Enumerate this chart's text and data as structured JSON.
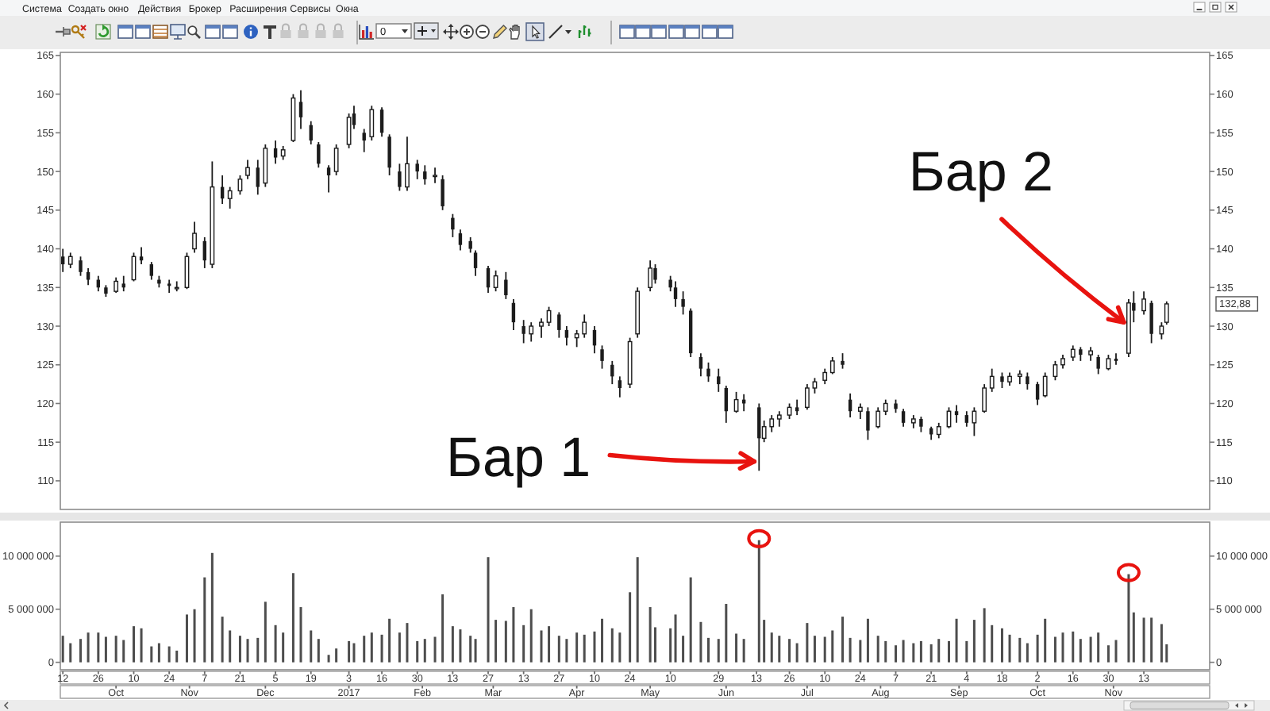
{
  "chart_data": [
    {
      "type": "candlestick",
      "color": "#1c1c1c",
      "x": [
        "2016-09-12",
        "2016-09-15",
        "2016-09-19",
        "2016-09-22",
        "2016-09-26",
        "2016-09-29",
        "2016-10-03",
        "2016-10-06",
        "2016-10-10",
        "2016-10-13",
        "2016-10-17",
        "2016-10-20",
        "2016-10-24",
        "2016-10-27",
        "2016-10-31",
        "2016-11-03",
        "2016-11-07",
        "2016-11-10",
        "2016-11-14",
        "2016-11-17",
        "2016-11-21",
        "2016-11-24",
        "2016-11-28",
        "2016-12-01",
        "2016-12-05",
        "2016-12-08",
        "2016-12-12",
        "2016-12-15",
        "2016-12-19",
        "2016-12-22",
        "2016-12-26",
        "2016-12-29",
        "2017-01-03",
        "2017-01-05",
        "2017-01-09",
        "2017-01-12",
        "2017-01-16",
        "2017-01-19",
        "2017-01-23",
        "2017-01-26",
        "2017-01-30",
        "2017-02-02",
        "2017-02-06",
        "2017-02-09",
        "2017-02-13",
        "2017-02-16",
        "2017-02-20",
        "2017-02-22",
        "2017-02-27",
        "2017-03-02",
        "2017-03-06",
        "2017-03-09",
        "2017-03-13",
        "2017-03-16",
        "2017-03-20",
        "2017-03-23",
        "2017-03-27",
        "2017-03-30",
        "2017-04-03",
        "2017-04-06",
        "2017-04-10",
        "2017-04-13",
        "2017-04-17",
        "2017-04-20",
        "2017-04-24",
        "2017-04-27",
        "2017-05-02",
        "2017-05-04",
        "2017-05-10",
        "2017-05-12",
        "2017-05-15",
        "2017-05-18",
        "2017-05-22",
        "2017-05-25",
        "2017-05-29",
        "2017-06-01",
        "2017-06-05",
        "2017-06-08",
        "2017-06-14",
        "2017-06-16",
        "2017-06-19",
        "2017-06-22",
        "2017-06-26",
        "2017-06-29",
        "2017-07-03",
        "2017-07-06",
        "2017-07-10",
        "2017-07-13",
        "2017-07-17",
        "2017-07-20",
        "2017-07-24",
        "2017-07-27",
        "2017-07-31",
        "2017-08-03",
        "2017-08-07",
        "2017-08-10",
        "2017-08-14",
        "2017-08-17",
        "2017-08-21",
        "2017-08-24",
        "2017-08-28",
        "2017-08-31",
        "2017-09-04",
        "2017-09-07",
        "2017-09-11",
        "2017-09-14",
        "2017-09-18",
        "2017-09-21",
        "2017-09-25",
        "2017-09-28",
        "2017-10-02",
        "2017-10-05",
        "2017-10-09",
        "2017-10-12",
        "2017-10-16",
        "2017-10-19",
        "2017-10-23",
        "2017-10-26",
        "2017-10-30",
        "2017-11-02",
        "2017-11-07",
        "2017-11-09",
        "2017-11-13",
        "2017-11-16",
        "2017-11-20",
        "2017-11-22"
      ],
      "ohlc": [
        [
          139,
          140,
          137,
          138
        ],
        [
          138,
          139.5,
          137.5,
          139
        ],
        [
          138.5,
          139,
          136.5,
          137
        ],
        [
          137,
          137.5,
          135.3,
          136
        ],
        [
          136,
          136.5,
          134.5,
          135
        ],
        [
          135,
          135.3,
          133.8,
          134.2
        ],
        [
          134.5,
          136.3,
          134.3,
          135.8
        ],
        [
          135.5,
          136.5,
          134.5,
          135
        ],
        [
          136,
          139.5,
          135.8,
          139
        ],
        [
          139,
          140.2,
          138,
          138.5
        ],
        [
          138,
          138.3,
          136,
          136.5
        ],
        [
          136,
          136.5,
          135,
          135.5
        ],
        [
          135.5,
          136,
          134.3,
          135.2
        ],
        [
          135,
          135.8,
          134.5,
          135
        ],
        [
          135,
          139.5,
          134.8,
          139
        ],
        [
          140,
          143.5,
          139.5,
          142
        ],
        [
          141,
          141.5,
          137.5,
          138.5
        ],
        [
          138,
          151.3,
          137.5,
          148
        ],
        [
          148,
          149.5,
          145.8,
          146.5
        ],
        [
          146.5,
          148,
          145.2,
          147.5
        ],
        [
          147.5,
          149.5,
          147,
          149
        ],
        [
          149.5,
          151.5,
          149,
          150.5
        ],
        [
          150.5,
          151.5,
          147,
          148
        ],
        [
          148.5,
          153.5,
          148,
          153
        ],
        [
          153,
          154,
          151,
          151.8
        ],
        [
          152,
          153.3,
          151.5,
          152.8
        ],
        [
          154,
          160,
          153.8,
          159.5
        ],
        [
          159,
          160.5,
          155.5,
          157
        ],
        [
          156,
          156.5,
          153.5,
          154
        ],
        [
          153.5,
          153.8,
          150.5,
          151
        ],
        [
          150.5,
          150.8,
          147.3,
          149.5
        ],
        [
          150,
          153.5,
          149.5,
          153
        ],
        [
          153.5,
          157.5,
          153,
          157
        ],
        [
          157.5,
          158.5,
          155.5,
          156
        ],
        [
          155,
          155.5,
          152.5,
          154
        ],
        [
          154.5,
          158.5,
          154,
          158
        ],
        [
          158,
          158.3,
          154.5,
          155
        ],
        [
          154.5,
          154.8,
          149.5,
          150.5
        ],
        [
          150,
          151,
          147.5,
          148
        ],
        [
          148,
          154.5,
          147.5,
          151
        ],
        [
          151,
          151.5,
          149,
          150
        ],
        [
          150,
          150.8,
          148.3,
          149
        ],
        [
          149.5,
          150.5,
          148.5,
          149.5
        ],
        [
          149,
          149.5,
          145,
          145.5
        ],
        [
          144,
          144.5,
          141.5,
          142.5
        ],
        [
          142,
          142.5,
          139.8,
          140.5
        ],
        [
          141,
          141.5,
          139.5,
          140
        ],
        [
          139.5,
          139.8,
          136.5,
          137.5
        ],
        [
          137.5,
          137.8,
          134.3,
          135
        ],
        [
          135,
          137.2,
          134.5,
          136.5
        ],
        [
          136,
          137,
          133.5,
          134
        ],
        [
          133,
          133.5,
          129.5,
          130.5
        ],
        [
          130,
          130.8,
          127.8,
          129
        ],
        [
          129,
          130.5,
          128,
          130
        ],
        [
          130,
          131,
          128.5,
          130.5
        ],
        [
          130.5,
          132.5,
          130,
          132
        ],
        [
          131.5,
          131.8,
          128.5,
          129.5
        ],
        [
          129.5,
          130,
          127.5,
          128.5
        ],
        [
          128.5,
          129.5,
          127.3,
          129
        ],
        [
          129,
          131.5,
          128.5,
          130.5
        ],
        [
          129.5,
          130,
          126.5,
          127.5
        ],
        [
          127,
          127.5,
          124.5,
          125.5
        ],
        [
          125,
          125.5,
          122.5,
          123.5
        ],
        [
          123,
          123.5,
          120.8,
          122
        ],
        [
          122.5,
          128.5,
          122,
          128
        ],
        [
          129,
          135,
          128.5,
          134.5
        ],
        [
          135,
          138.5,
          134.5,
          137.5
        ],
        [
          137.5,
          138,
          135.5,
          136
        ],
        [
          136,
          136.5,
          134.5,
          135
        ],
        [
          135,
          135.8,
          132.5,
          133.5
        ],
        [
          133.5,
          134.5,
          131.5,
          132.5
        ],
        [
          132,
          132.3,
          126,
          126.5
        ],
        [
          126,
          126.5,
          123.5,
          124.5
        ],
        [
          124.5,
          125.3,
          122.8,
          123.5
        ],
        [
          123.5,
          124.5,
          121.5,
          122.5
        ],
        [
          122,
          122.3,
          117.5,
          119
        ],
        [
          119,
          121.5,
          118.8,
          120.5
        ],
        [
          120.5,
          121.2,
          119,
          120
        ],
        [
          119.5,
          120,
          111.3,
          115.5
        ],
        [
          115.5,
          117.8,
          115,
          117
        ],
        [
          117,
          118.5,
          116.3,
          118
        ],
        [
          118,
          119,
          117,
          118.5
        ],
        [
          118.5,
          120,
          118,
          119.5
        ],
        [
          119.5,
          120.5,
          118.5,
          119
        ],
        [
          119.5,
          122.5,
          119.2,
          122
        ],
        [
          122,
          123.3,
          121.3,
          122.8
        ],
        [
          123,
          124.5,
          122.5,
          124
        ],
        [
          124,
          126,
          123.8,
          125.5
        ],
        [
          125.5,
          126.5,
          124.5,
          125
        ],
        [
          120.5,
          121.3,
          118.2,
          119
        ],
        [
          119,
          120,
          118,
          119.5
        ],
        [
          119,
          119.5,
          115.3,
          116.5
        ],
        [
          117,
          119.5,
          116.8,
          119
        ],
        [
          119,
          120.5,
          118.5,
          120
        ],
        [
          120,
          120.5,
          118.8,
          119.3
        ],
        [
          119,
          119.3,
          117,
          117.5
        ],
        [
          117.5,
          118.5,
          116.8,
          118
        ],
        [
          118,
          118.3,
          116.3,
          117
        ],
        [
          116.8,
          117,
          115.3,
          116
        ],
        [
          116,
          117.5,
          115.5,
          117
        ],
        [
          117,
          119.5,
          116.8,
          119
        ],
        [
          119,
          119.8,
          117.5,
          118.5
        ],
        [
          118.5,
          119,
          117,
          117.5
        ],
        [
          117.5,
          119.5,
          115.8,
          119
        ],
        [
          119,
          122.5,
          118.8,
          122
        ],
        [
          122,
          124.5,
          121.5,
          123.5
        ],
        [
          123.5,
          124,
          122,
          122.8
        ],
        [
          122.8,
          124,
          122.3,
          123.5
        ],
        [
          123.5,
          124.3,
          122.5,
          123.8
        ],
        [
          123.5,
          124,
          121.8,
          122.5
        ],
        [
          122.5,
          122.8,
          119.8,
          120.5
        ],
        [
          121,
          124,
          120.8,
          123.5
        ],
        [
          123.5,
          125.5,
          123,
          125
        ],
        [
          125,
          126.3,
          124.5,
          125.8
        ],
        [
          126,
          127.5,
          125.5,
          127
        ],
        [
          127,
          127.3,
          125.5,
          126.3
        ],
        [
          126.3,
          127.3,
          125.5,
          126.8
        ],
        [
          126,
          126.3,
          123.8,
          124.5
        ],
        [
          124.5,
          126.3,
          124.3,
          125.8
        ],
        [
          125.8,
          126.5,
          125,
          125.5
        ],
        [
          126.5,
          133.5,
          126,
          133
        ],
        [
          133,
          134.5,
          130.5,
          132
        ],
        [
          132,
          134.5,
          131.5,
          133.5
        ],
        [
          133,
          133.3,
          127.8,
          129
        ],
        [
          129,
          130.5,
          128.3,
          130
        ],
        [
          130.5,
          133.2,
          130.2,
          132.88
        ]
      ],
      "xlim": [
        "2016-09-11",
        "2017-12-09"
      ],
      "ylim": [
        106.3,
        165.4
      ],
      "yticks": [
        110,
        115,
        120,
        125,
        130,
        135,
        140,
        145,
        150,
        155,
        160,
        165
      ],
      "y2lim": [
        106.3,
        165.4
      ],
      "y2ticks": [
        110,
        115,
        120,
        125,
        130,
        135,
        140,
        145,
        150,
        155,
        160,
        165,
        {
          "value": 132.88,
          "label": "132,88"
        }
      ],
      "tick_labels": "y",
      "annotations": [
        {
          "text": "Бар 1",
          "x": "2017-06-14",
          "y": 112.5
        },
        {
          "text": "Бар 2",
          "x": "2017-11-07",
          "y": 130.5
        },
        "Система",
        "Создать окно",
        "Действия",
        "Брокер",
        "Расширения",
        "Сервисы",
        "Окна",
        "0"
      ]
    },
    {
      "type": "bar",
      "color": "#4d4d4d",
      "x": [
        "2016-09-12",
        "2016-09-15",
        "2016-09-19",
        "2016-09-22",
        "2016-09-26",
        "2016-09-29",
        "2016-10-03",
        "2016-10-06",
        "2016-10-10",
        "2016-10-13",
        "2016-10-17",
        "2016-10-20",
        "2016-10-24",
        "2016-10-27",
        "2016-10-31",
        "2016-11-03",
        "2016-11-07",
        "2016-11-10",
        "2016-11-14",
        "2016-11-17",
        "2016-11-21",
        "2016-11-24",
        "2016-11-28",
        "2016-12-01",
        "2016-12-05",
        "2016-12-08",
        "2016-12-12",
        "2016-12-15",
        "2016-12-19",
        "2016-12-22",
        "2016-12-26",
        "2016-12-29",
        "2017-01-03",
        "2017-01-05",
        "2017-01-09",
        "2017-01-12",
        "2017-01-16",
        "2017-01-19",
        "2017-01-23",
        "2017-01-26",
        "2017-01-30",
        "2017-02-02",
        "2017-02-06",
        "2017-02-09",
        "2017-02-13",
        "2017-02-16",
        "2017-02-20",
        "2017-02-22",
        "2017-02-27",
        "2017-03-02",
        "2017-03-06",
        "2017-03-09",
        "2017-03-13",
        "2017-03-16",
        "2017-03-20",
        "2017-03-23",
        "2017-03-27",
        "2017-03-30",
        "2017-04-03",
        "2017-04-06",
        "2017-04-10",
        "2017-04-13",
        "2017-04-17",
        "2017-04-20",
        "2017-04-24",
        "2017-04-27",
        "2017-05-02",
        "2017-05-04",
        "2017-05-10",
        "2017-05-12",
        "2017-05-15",
        "2017-05-18",
        "2017-05-22",
        "2017-05-25",
        "2017-05-29",
        "2017-06-01",
        "2017-06-05",
        "2017-06-08",
        "2017-06-14",
        "2017-06-16",
        "2017-06-19",
        "2017-06-22",
        "2017-06-26",
        "2017-06-29",
        "2017-07-03",
        "2017-07-06",
        "2017-07-10",
        "2017-07-13",
        "2017-07-17",
        "2017-07-20",
        "2017-07-24",
        "2017-07-27",
        "2017-07-31",
        "2017-08-03",
        "2017-08-07",
        "2017-08-10",
        "2017-08-14",
        "2017-08-17",
        "2017-08-21",
        "2017-08-24",
        "2017-08-28",
        "2017-08-31",
        "2017-09-04",
        "2017-09-07",
        "2017-09-11",
        "2017-09-14",
        "2017-09-18",
        "2017-09-21",
        "2017-09-25",
        "2017-09-28",
        "2017-10-02",
        "2017-10-05",
        "2017-10-09",
        "2017-10-12",
        "2017-10-16",
        "2017-10-19",
        "2017-10-23",
        "2017-10-26",
        "2017-10-30",
        "2017-11-02",
        "2017-11-07",
        "2017-11-09",
        "2017-11-13",
        "2017-11-16",
        "2017-11-20",
        "2017-11-22"
      ],
      "values": [
        2500000,
        1800000,
        2200000,
        2800000,
        2800000,
        2400000,
        2500000,
        2100000,
        3400000,
        3200000,
        1500000,
        1800000,
        1500000,
        1100000,
        4500000,
        5000000,
        8000000,
        10300000,
        4300000,
        3000000,
        2500000,
        2200000,
        2300000,
        5700000,
        3500000,
        2800000,
        8400000,
        5200000,
        3000000,
        2200000,
        700000,
        1300000,
        2000000,
        1800000,
        2500000,
        2800000,
        2600000,
        4100000,
        2800000,
        3700000,
        2000000,
        2200000,
        2400000,
        6400000,
        3400000,
        3100000,
        2500000,
        2200000,
        9900000,
        4000000,
        3900000,
        5200000,
        3500000,
        5000000,
        3000000,
        3400000,
        2500000,
        2200000,
        2800000,
        2600000,
        2900000,
        4100000,
        3200000,
        2800000,
        6600000,
        9900000,
        5200000,
        3300000,
        3200000,
        4500000,
        2500000,
        8000000,
        3800000,
        2300000,
        2200000,
        5500000,
        2700000,
        2200000,
        11500000,
        4000000,
        2800000,
        2500000,
        2200000,
        1800000,
        3700000,
        2500000,
        2400000,
        3000000,
        4300000,
        2300000,
        2100000,
        4100000,
        2500000,
        2000000,
        1600000,
        2100000,
        1800000,
        2000000,
        1700000,
        2200000,
        2000000,
        4100000,
        2000000,
        4000000,
        5100000,
        3500000,
        3200000,
        2600000,
        2300000,
        1800000,
        2600000,
        4100000,
        2400000,
        2800000,
        2900000,
        2200000,
        2400000,
        2800000,
        1600000,
        2100000,
        8300000,
        4700000,
        4200000,
        4200000,
        3600000,
        1700000
      ],
      "xlim": [
        "2016-09-11",
        "2017-12-09"
      ],
      "xticks": [
        {
          "value": "2016-09-12",
          "label": "12"
        },
        {
          "value": "2016-09-26",
          "label": "26"
        },
        {
          "value": "2016-10-10",
          "label": "10"
        },
        {
          "value": "2016-10-24",
          "label": "24"
        },
        {
          "value": "2016-11-07",
          "label": "7"
        },
        {
          "value": "2016-11-21",
          "label": "21"
        },
        {
          "value": "2016-12-05",
          "label": "5"
        },
        {
          "value": "2016-12-19",
          "label": "19"
        },
        {
          "value": "2017-01-03",
          "label": "3"
        },
        {
          "value": "2017-01-16",
          "label": "16"
        },
        {
          "value": "2017-01-30",
          "label": "30"
        },
        {
          "value": "2017-02-13",
          "label": "13"
        },
        {
          "value": "2017-02-27",
          "label": "27"
        },
        {
          "value": "2017-03-13",
          "label": "13"
        },
        {
          "value": "2017-03-27",
          "label": "27"
        },
        {
          "value": "2017-04-10",
          "label": "10"
        },
        {
          "value": "2017-04-24",
          "label": "24"
        },
        {
          "value": "2017-05-10",
          "label": "10"
        },
        {
          "value": "2017-05-29",
          "label": "29"
        },
        {
          "value": "2017-06-13",
          "label": "13"
        },
        {
          "value": "2017-06-26",
          "label": "26"
        },
        {
          "value": "2017-07-10",
          "label": "10"
        },
        {
          "value": "2017-07-24",
          "label": "24"
        },
        {
          "value": "2017-08-07",
          "label": "7"
        },
        {
          "value": "2017-08-21",
          "label": "21"
        },
        {
          "value": "2017-09-04",
          "label": "4"
        },
        {
          "value": "2017-09-18",
          "label": "18"
        },
        {
          "value": "2017-10-02",
          "label": "2"
        },
        {
          "value": "2017-10-16",
          "label": "16"
        },
        {
          "value": "2017-10-30",
          "label": "30"
        },
        {
          "value": "2017-11-13",
          "label": "13"
        }
      ],
      "x2lim": [
        "2016-09-11",
        "2017-12-09"
      ],
      "x2ticks": [
        {
          "value": "2016-10-03",
          "label": "Oct"
        },
        {
          "value": "2016-11-01",
          "label": "Nov"
        },
        {
          "value": "2016-12-01",
          "label": "Dec"
        },
        {
          "value": "2017-01-03",
          "label": "2017"
        },
        {
          "value": "2017-02-01",
          "label": "Feb"
        },
        {
          "value": "2017-03-01",
          "label": "Mar"
        },
        {
          "value": "2017-04-03",
          "label": "Apr"
        },
        {
          "value": "2017-05-02",
          "label": "May"
        },
        {
          "value": "2017-06-01",
          "label": "Jun"
        },
        {
          "value": "2017-07-03",
          "label": "Jul"
        },
        {
          "value": "2017-08-01",
          "label": "Aug"
        },
        {
          "value": "2017-09-01",
          "label": "Sep"
        },
        {
          "value": "2017-10-02",
          "label": "Oct"
        },
        {
          "value": "2017-11-01",
          "label": "Nov"
        }
      ],
      "ylim": [
        -700000,
        13200000
      ],
      "yticks": [
        0,
        {
          "value": 5000000,
          "label": "5 000 000"
        },
        {
          "value": 10000000,
          "label": "10 000 000"
        }
      ],
      "y2lim": [
        -700000,
        13200000
      ],
      "y2ticks": [
        0,
        {
          "value": 5000000,
          "label": "5 000 000"
        },
        {
          "value": 10000000,
          "label": "10 000 000"
        }
      ]
    }
  ]
}
